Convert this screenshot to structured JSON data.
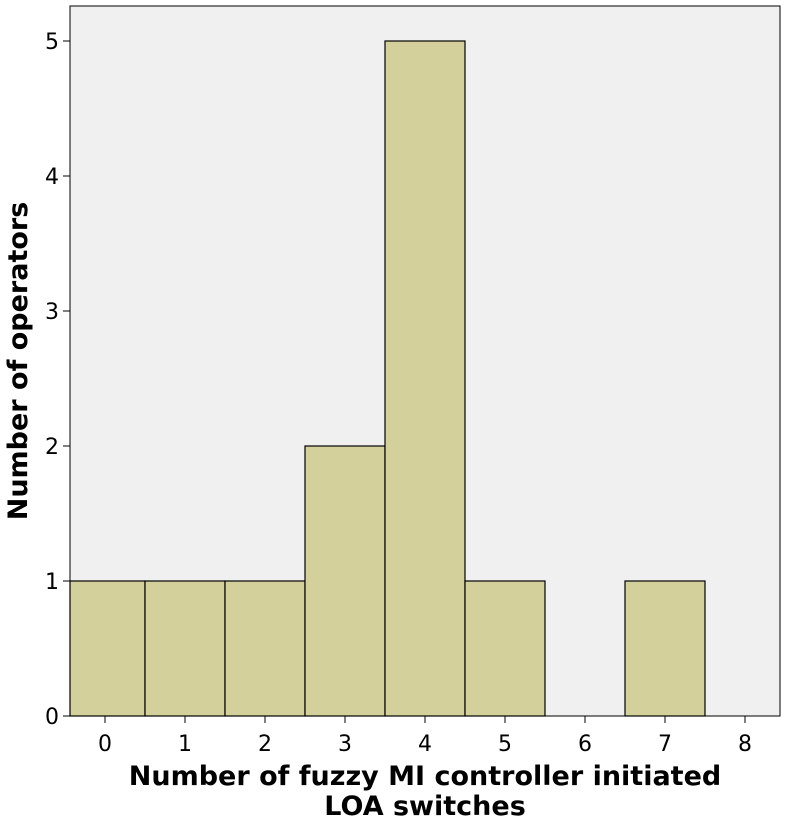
{
  "chart_data": {
    "type": "bar",
    "title": "",
    "xlabel": [
      "Number of fuzzy MI controller initiated",
      "LOA switches"
    ],
    "ylabel": "Number of operators",
    "categories": [
      0,
      1,
      2,
      3,
      4,
      5,
      6,
      7,
      8
    ],
    "x_tick_labels": [
      "0",
      "1",
      "2",
      "3",
      "4",
      "5",
      "6",
      "7",
      "8"
    ],
    "y_tick_labels": [
      "0",
      "1",
      "2",
      "3",
      "4",
      "5"
    ],
    "bins": [
      {
        "from": -0.5,
        "to": 0.5,
        "value": 1
      },
      {
        "from": 0.5,
        "to": 1.5,
        "value": 1
      },
      {
        "from": 1.5,
        "to": 2.5,
        "value": 1
      },
      {
        "from": 2.5,
        "to": 3.5,
        "value": 2
      },
      {
        "from": 3.5,
        "to": 4.5,
        "value": 5
      },
      {
        "from": 4.5,
        "to": 5.5,
        "value": 1
      },
      {
        "from": 6.5,
        "to": 7.5,
        "value": 1
      }
    ],
    "xlim": [
      -0.5,
      8
    ],
    "ylim": [
      0,
      5.3
    ],
    "grid": false,
    "colors": {
      "bar_fill": "#d4d09c",
      "bar_stroke": "#000000",
      "plot_background": "#f0f0f0"
    }
  }
}
